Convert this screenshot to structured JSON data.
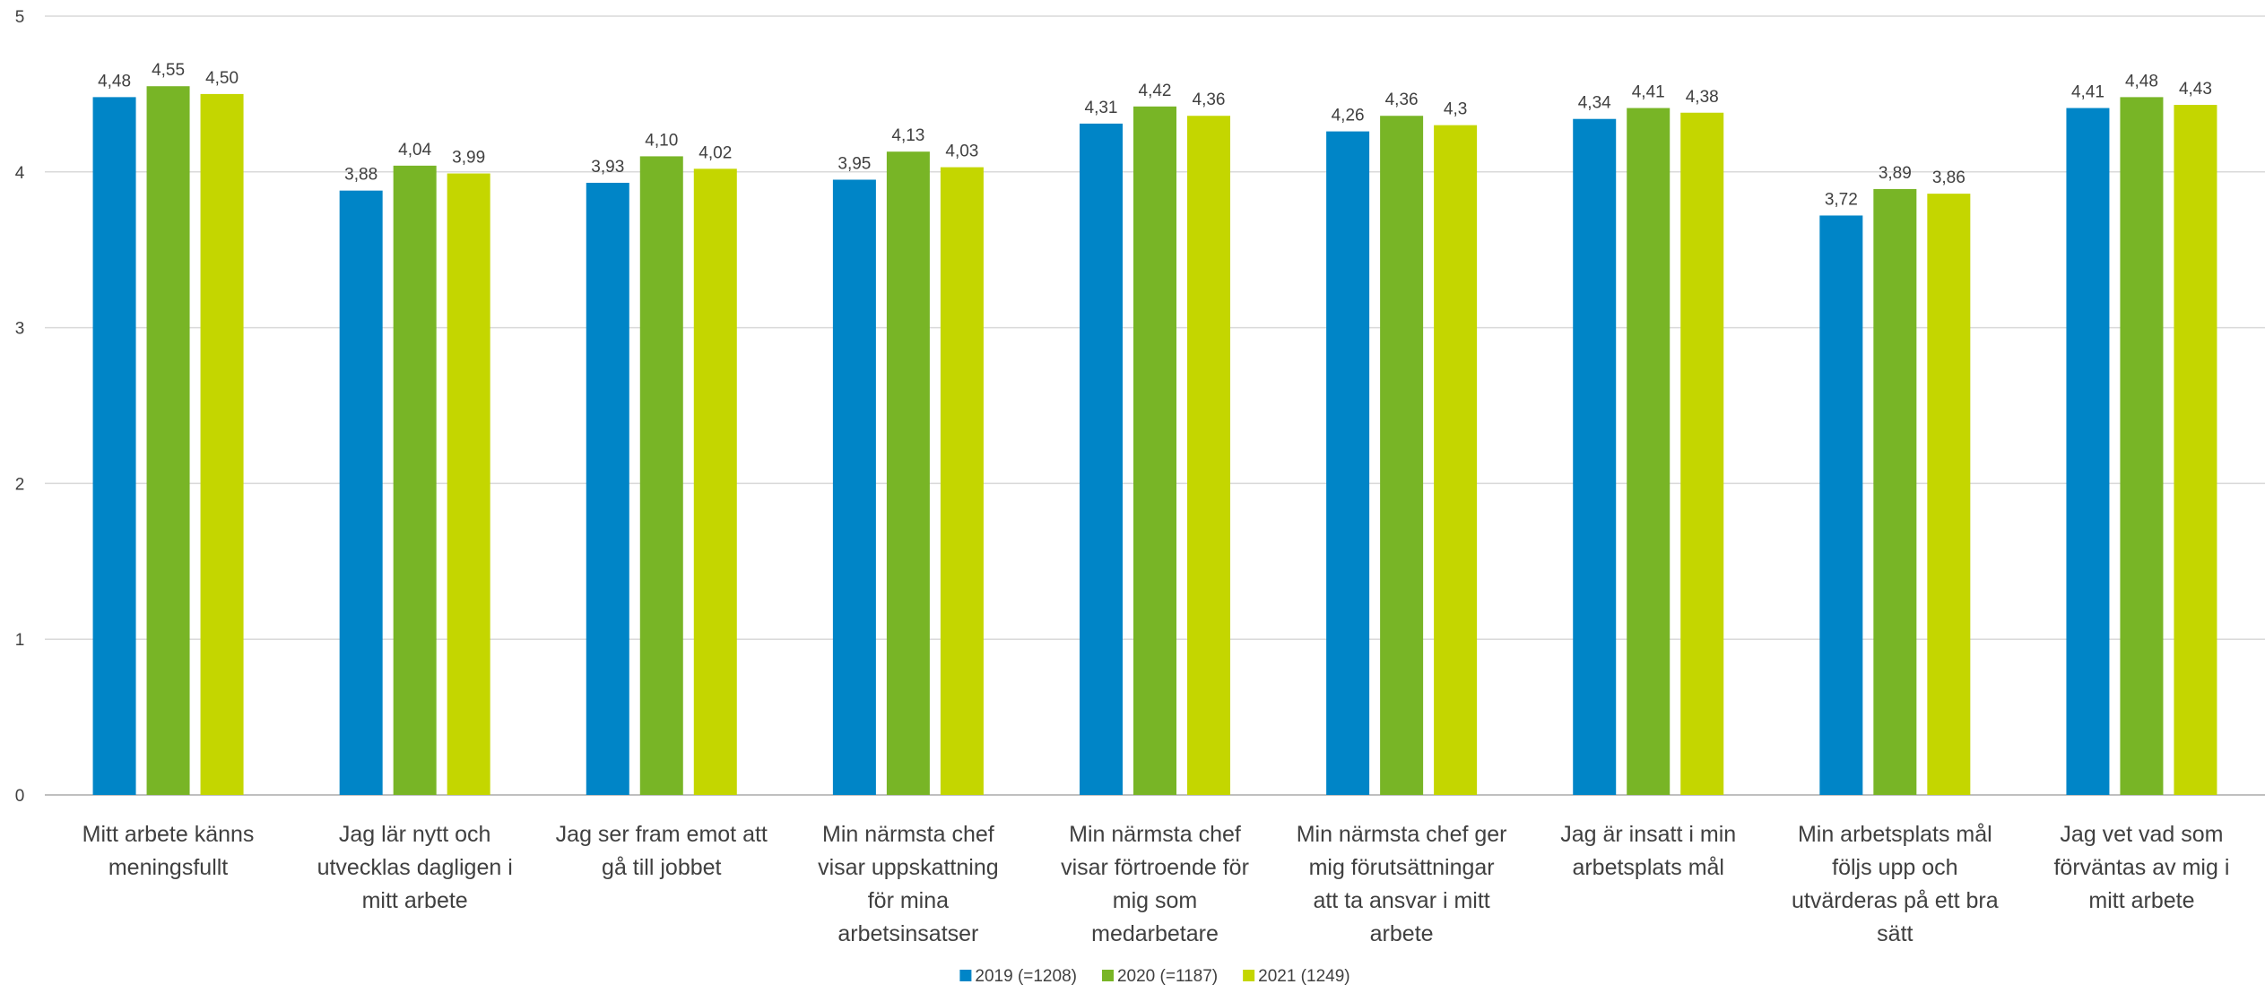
{
  "chart_data": {
    "type": "bar",
    "title": "",
    "xlabel": "",
    "ylabel": "",
    "ylim": [
      0,
      5
    ],
    "yticks": [
      0,
      1,
      2,
      3,
      4,
      5
    ],
    "grid": true,
    "legend_position": "bottom-center",
    "categories": [
      [
        "Mitt arbete känns",
        "meningsfullt"
      ],
      [
        "Jag lär nytt och",
        "utvecklas dagligen i",
        "mitt arbete"
      ],
      [
        "Jag ser fram emot att",
        "gå till jobbet"
      ],
      [
        "Min närmsta chef",
        "visar uppskattning",
        "för mina",
        "arbetsinsatser"
      ],
      [
        "Min närmsta chef",
        "visar förtroende för",
        "mig som",
        "medarbetare"
      ],
      [
        "Min närmsta chef ger",
        "mig förutsättningar",
        "att ta ansvar i mitt",
        "arbete"
      ],
      [
        "Jag är insatt i min",
        "arbetsplats mål"
      ],
      [
        "Min arbetsplats mål",
        "följs upp och",
        "utvärderas på ett bra",
        "sätt"
      ],
      [
        "Jag vet vad som",
        "förväntas av mig i",
        "mitt arbete"
      ]
    ],
    "series": [
      {
        "name": "2019 (=1208)",
        "color": "#0085c7",
        "values": [
          4.48,
          3.88,
          3.93,
          3.95,
          4.31,
          4.26,
          4.34,
          3.72,
          4.41
        ],
        "labels": [
          "4,48",
          "3,88",
          "3,93",
          "3,95",
          "4,31",
          "4,26",
          "4,34",
          "3,72",
          "4,41"
        ]
      },
      {
        "name": "2020 (=1187)",
        "color": "#78b526",
        "values": [
          4.55,
          4.04,
          4.1,
          4.13,
          4.42,
          4.36,
          4.41,
          3.89,
          4.48
        ],
        "labels": [
          "4,55",
          "4,04",
          "4,10",
          "4,13",
          "4,42",
          "4,36",
          "4,41",
          "3,89",
          "4,48"
        ]
      },
      {
        "name": "2021 (1249)",
        "color": "#c4d600",
        "values": [
          4.5,
          3.99,
          4.02,
          4.03,
          4.36,
          4.3,
          4.38,
          3.86,
          4.43
        ],
        "labels": [
          "4,50",
          "3,99",
          "4,02",
          "4,03",
          "4,36",
          "4,3",
          "4,38",
          "3,86",
          "4,43"
        ]
      }
    ]
  }
}
